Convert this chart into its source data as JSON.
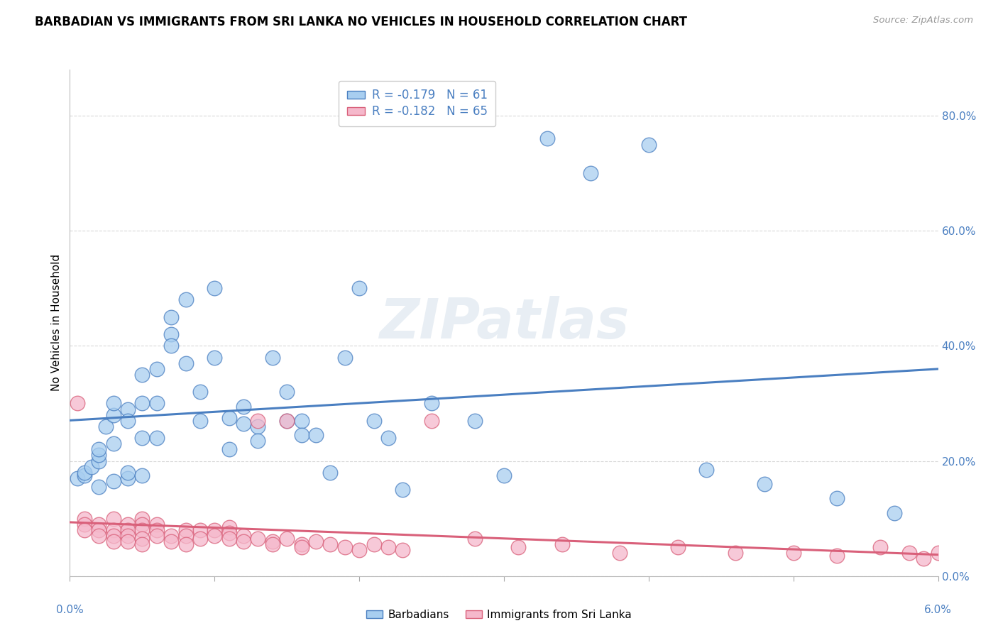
{
  "title": "BARBADIAN VS IMMIGRANTS FROM SRI LANKA NO VEHICLES IN HOUSEHOLD CORRELATION CHART",
  "source": "Source: ZipAtlas.com",
  "ylabel": "No Vehicles in Household",
  "R1": -0.179,
  "N1": 61,
  "R2": -0.182,
  "N2": 65,
  "color1": "#a8cef0",
  "color2": "#f5b8cb",
  "line_color1": "#4a7fc1",
  "line_color2": "#d9607a",
  "legend_label1": "Barbadians",
  "legend_label2": "Immigrants from Sri Lanka",
  "xlim": [
    0.0,
    0.06
  ],
  "ylim": [
    0.0,
    0.88
  ],
  "ytick_vals": [
    0.0,
    0.2,
    0.4,
    0.6,
    0.8
  ],
  "ytick_labels": [
    "0.0%",
    "20.0%",
    "40.0%",
    "60.0%",
    "80.0%"
  ],
  "background_color": "#ffffff",
  "grid_color": "#d8d8d8",
  "scatter1_x": [
    0.0005,
    0.001,
    0.001,
    0.0015,
    0.002,
    0.002,
    0.002,
    0.002,
    0.0025,
    0.003,
    0.003,
    0.003,
    0.003,
    0.004,
    0.004,
    0.004,
    0.004,
    0.005,
    0.005,
    0.005,
    0.005,
    0.006,
    0.006,
    0.006,
    0.007,
    0.007,
    0.007,
    0.008,
    0.008,
    0.009,
    0.009,
    0.01,
    0.01,
    0.011,
    0.011,
    0.012,
    0.012,
    0.013,
    0.013,
    0.014,
    0.015,
    0.015,
    0.016,
    0.016,
    0.017,
    0.018,
    0.019,
    0.02,
    0.021,
    0.022,
    0.023,
    0.025,
    0.028,
    0.03,
    0.033,
    0.036,
    0.04,
    0.044,
    0.048,
    0.053,
    0.057
  ],
  "scatter1_y": [
    0.17,
    0.175,
    0.18,
    0.19,
    0.2,
    0.21,
    0.155,
    0.22,
    0.26,
    0.28,
    0.3,
    0.23,
    0.165,
    0.17,
    0.29,
    0.27,
    0.18,
    0.35,
    0.3,
    0.24,
    0.175,
    0.36,
    0.3,
    0.24,
    0.45,
    0.42,
    0.4,
    0.48,
    0.37,
    0.32,
    0.27,
    0.5,
    0.38,
    0.275,
    0.22,
    0.295,
    0.265,
    0.26,
    0.235,
    0.38,
    0.32,
    0.27,
    0.27,
    0.245,
    0.245,
    0.18,
    0.38,
    0.5,
    0.27,
    0.24,
    0.15,
    0.3,
    0.27,
    0.175,
    0.76,
    0.7,
    0.75,
    0.185,
    0.16,
    0.135,
    0.11
  ],
  "scatter2_x": [
    0.0005,
    0.001,
    0.001,
    0.001,
    0.002,
    0.002,
    0.002,
    0.003,
    0.003,
    0.003,
    0.003,
    0.004,
    0.004,
    0.004,
    0.004,
    0.005,
    0.005,
    0.005,
    0.005,
    0.005,
    0.006,
    0.006,
    0.006,
    0.007,
    0.007,
    0.008,
    0.008,
    0.008,
    0.009,
    0.009,
    0.01,
    0.01,
    0.011,
    0.011,
    0.011,
    0.012,
    0.012,
    0.013,
    0.013,
    0.014,
    0.014,
    0.015,
    0.015,
    0.016,
    0.016,
    0.017,
    0.018,
    0.019,
    0.02,
    0.021,
    0.022,
    0.023,
    0.025,
    0.028,
    0.031,
    0.034,
    0.038,
    0.042,
    0.046,
    0.05,
    0.053,
    0.056,
    0.058,
    0.059,
    0.06
  ],
  "scatter2_y": [
    0.3,
    0.1,
    0.09,
    0.08,
    0.09,
    0.08,
    0.07,
    0.1,
    0.08,
    0.07,
    0.06,
    0.09,
    0.08,
    0.07,
    0.06,
    0.1,
    0.09,
    0.08,
    0.065,
    0.055,
    0.09,
    0.08,
    0.07,
    0.07,
    0.06,
    0.08,
    0.07,
    0.055,
    0.08,
    0.065,
    0.08,
    0.07,
    0.085,
    0.075,
    0.065,
    0.07,
    0.06,
    0.27,
    0.065,
    0.06,
    0.055,
    0.27,
    0.065,
    0.055,
    0.05,
    0.06,
    0.055,
    0.05,
    0.045,
    0.055,
    0.05,
    0.045,
    0.27,
    0.065,
    0.05,
    0.055,
    0.04,
    0.05,
    0.04,
    0.04,
    0.035,
    0.05,
    0.04,
    0.03,
    0.04
  ]
}
